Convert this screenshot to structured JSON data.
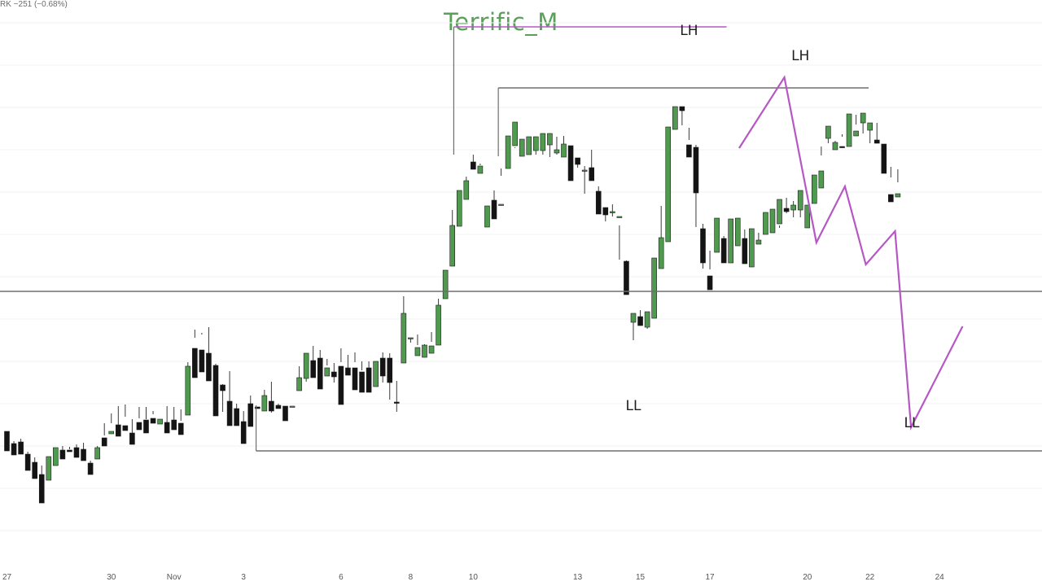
{
  "header": {
    "symbol_info": "RK  −251 (−0.68%)",
    "title": "Terrific_M"
  },
  "chart_data": {
    "type": "candlestick",
    "price_scale": "unlabeled (pixel-derived price units, larger = higher)",
    "xaxis_ticks": [
      {
        "i": 0,
        "label": "27"
      },
      {
        "i": 15,
        "label": "30"
      },
      {
        "i": 24,
        "label": "Nov"
      },
      {
        "i": 34,
        "label": "3"
      },
      {
        "i": 48,
        "label": "6"
      },
      {
        "i": 58,
        "label": "8"
      },
      {
        "i": 67,
        "label": "10"
      },
      {
        "i": 82,
        "label": "13"
      },
      {
        "i": 91,
        "label": "15"
      },
      {
        "i": 101,
        "label": "17"
      },
      {
        "i": 115,
        "label": "20"
      },
      {
        "i": 124,
        "label": "22"
      },
      {
        "i": 134,
        "label": "24"
      }
    ],
    "candles": [
      [
        190,
        182,
        170,
        166
      ],
      [
        175,
        178,
        165,
        161
      ],
      [
        177,
        181,
        164,
        162
      ],
      [
        162,
        165,
        146,
        142
      ],
      [
        152,
        158,
        137,
        132
      ],
      [
        137,
        148,
        123,
        102
      ],
      [
        130,
        154,
        156,
        159
      ],
      [
        148,
        165,
        149,
        170
      ],
      [
        167,
        172,
        161,
        156
      ],
      [
        167,
        168,
        171,
        165
      ],
      [
        170,
        174,
        170,
        158
      ],
      [
        168,
        176,
        160,
        154
      ],
      [
        151,
        154,
        143,
        137
      ],
      [
        156,
        167,
        172,
        170
      ],
      [
        182,
        200,
        185,
        172
      ],
      [
        187,
        212,
        200,
        190
      ],
      [
        198,
        221,
        197,
        184
      ],
      [
        197,
        223,
        208,
        191
      ],
      [
        188,
        205,
        185,
        174
      ],
      [
        201,
        220,
        206,
        192
      ],
      [
        204,
        220,
        205,
        188
      ],
      [
        206,
        215,
        211,
        200
      ],
      [
        199,
        221,
        221,
        205
      ],
      [
        201,
        221,
        197,
        188
      ],
      [
        204,
        220,
        204,
        192
      ],
      [
        200,
        217,
        203,
        186
      ],
      [
        210,
        241,
        275,
        270
      ],
      [
        292,
        315,
        305,
        256
      ],
      [
        290,
        311,
        309,
        263
      ],
      [
        286,
        318,
        281,
        252
      ],
      [
        271,
        273,
        226,
        209
      ],
      [
        247,
        248,
        214,
        240
      ],
      [
        227,
        264,
        211,
        197
      ],
      [
        218,
        224,
        208,
        197
      ],
      [
        202,
        215,
        189,
        175
      ],
      [
        224,
        234,
        207,
        196
      ],
      [
        220,
        213,
        213,
        218
      ],
      [
        215,
        222,
        241,
        234
      ],
      [
        227,
        251,
        213,
        215
      ],
      [
        222,
        224,
        221,
        218
      ],
      [
        221,
        221,
        207,
        203
      ],
      [
        221,
        225,
        225,
        221
      ],
      [
        240,
        270,
        240,
        256
      ],
      [
        255,
        268,
        251,
        286
      ],
      [
        277,
        295,
        263,
        256
      ],
      [
        280,
        290,
        255,
        242
      ],
      [
        258,
        279,
        271,
        268
      ],
      [
        263,
        274,
        250,
        257
      ],
      [
        270,
        292,
        275,
        223
      ],
      [
        268,
        284,
        264,
        259
      ],
      [
        268,
        287,
        275,
        241
      ],
      [
        263,
        276,
        265,
        238
      ],
      [
        268,
        276,
        265,
        238
      ],
      [
        245,
        256,
        261,
        276
      ],
      [
        280,
        287,
        250,
        258
      ],
      [
        280,
        286,
        229,
        250
      ],
      [
        226,
        252,
        214,
        225
      ],
      [
        274,
        356,
        332,
        335
      ],
      [
        305,
        304,
        299,
        305
      ],
      [
        283,
        309,
        296,
        293
      ],
      [
        281,
        293,
        297,
        296
      ],
      [
        286,
        312,
        300,
        295
      ],
      [
        296,
        322,
        353,
        345
      ],
      [
        353,
        376,
        361,
        388
      ],
      [
        393,
        423,
        462,
        443
      ],
      [
        442,
        467,
        485,
        486
      ],
      [
        475,
        503,
        492,
        498
      ],
      [
        521,
        530,
        521,
        512
      ],
      [
        507,
        517,
        519,
        516
      ],
      [
        441,
        459,
        467,
        467
      ],
      [
        474,
        453,
        486,
        451
      ],
      [
        469,
        504,
        513,
        469
      ],
      [
        513,
        542,
        528,
        553
      ],
      [
        541,
        538,
        539,
        570
      ],
      [
        528,
        537,
        543,
        549
      ],
      [
        530,
        546,
        530,
        552
      ],
      [
        535,
        544,
        530,
        552
      ],
      [
        535,
        543,
        530,
        556
      ],
      [
        542,
        543,
        527,
        556
      ],
      [
        532,
        552,
        530,
        536
      ],
      [
        527,
        553,
        532,
        543
      ],
      [
        541,
        541,
        517,
        498
      ],
      [
        526,
        520,
        514,
        518
      ],
      [
        511,
        516,
        482,
        511
      ],
      [
        514,
        536,
        505,
        498
      ],
      [
        485,
        491,
        483,
        457
      ],
      [
        465,
        463,
        448,
        456
      ],
      [
        460,
        469,
        454,
        460
      ],
      [
        454,
        443,
        401,
        454
      ],
      [
        399,
        400,
        359,
        358
      ],
      [
        324,
        333,
        302,
        335
      ],
      [
        331,
        326,
        339,
        320
      ],
      [
        318,
        316,
        330,
        337
      ],
      [
        329,
        347,
        366,
        403
      ],
      [
        390,
        467,
        413,
        428
      ],
      [
        423,
        527,
        550,
        564
      ],
      [
        561,
        572,
        566,
        589
      ],
      [
        589,
        588,
        566,
        584
      ],
      [
        542,
        563,
        548,
        527
      ],
      [
        539,
        542,
        441,
        483
      ],
      [
        439,
        445,
        390,
        397
      ],
      [
        381,
        389,
        412,
        364
      ],
      [
        410,
        443,
        421,
        452
      ],
      [
        427,
        430,
        401,
        397
      ],
      [
        397,
        423,
        419,
        451
      ],
      [
        418,
        439,
        437,
        452
      ],
      [
        427,
        438,
        399,
        396
      ],
      [
        392,
        410,
        435,
        439
      ],
      [
        420,
        434,
        424,
        425
      ],
      [
        432,
        445,
        452,
        459
      ],
      [
        434,
        455,
        446,
        463
      ],
      [
        445,
        440,
        443,
        475
      ],
      [
        464,
        477,
        458,
        460
      ],
      [
        462,
        473,
        453,
        468
      ],
      [
        462,
        475,
        453,
        486
      ],
      [
        440,
        441,
        459,
        468
      ],
      [
        470,
        490,
        492,
        505
      ],
      [
        489,
        540,
        529,
        510
      ],
      [
        550,
        554,
        544,
        565
      ],
      [
        536,
        547,
        539,
        545
      ],
      [
        540,
        552,
        555,
        539
      ],
      [
        540,
        560,
        570,
        580
      ],
      [
        553,
        579,
        567,
        559
      ],
      [
        569,
        556,
        571,
        581
      ],
      [
        560,
        566,
        544,
        569
      ],
      [
        548,
        569,
        548,
        544
      ],
      [
        543,
        537,
        512,
        507
      ],
      [
        481,
        515,
        502,
        472
      ],
      [
        478,
        512,
        496,
        482
      ]
    ],
    "swing_labels": [
      {
        "text": "LH",
        "i": 98,
        "p": 677
      },
      {
        "text": "LH",
        "i": 114,
        "p": 646
      },
      {
        "text": "LL",
        "i": 90,
        "p": 216
      },
      {
        "text": "LL",
        "i": 130,
        "p": 195
      }
    ],
    "levels": [
      {
        "kind": "horizontal",
        "color": "#6e6e6e",
        "from": -5,
        "to": 150,
        "p": 362
      },
      {
        "kind": "horizontal",
        "color": "#6e6e6e",
        "from": 35.8,
        "to": 150,
        "p": 166
      },
      {
        "kind": "horizontal",
        "color": "#6e6e6e",
        "from": 70.6,
        "to": 123.8,
        "p": 612
      },
      {
        "kind": "horizontal",
        "color": "#b658c4",
        "from": 64.2,
        "to": 103.4,
        "p": 687
      }
    ],
    "projection_path": {
      "color": "#b658c4",
      "points": [
        [
          105.2,
          538
        ],
        [
          111.7,
          625
        ],
        [
          116.3,
          422
        ],
        [
          120.4,
          491
        ],
        [
          123.4,
          395
        ],
        [
          127.6,
          436
        ],
        [
          129.9,
          195
        ],
        [
          137.3,
          319
        ]
      ]
    },
    "grid": "horizontal faint",
    "legend": "none"
  }
}
